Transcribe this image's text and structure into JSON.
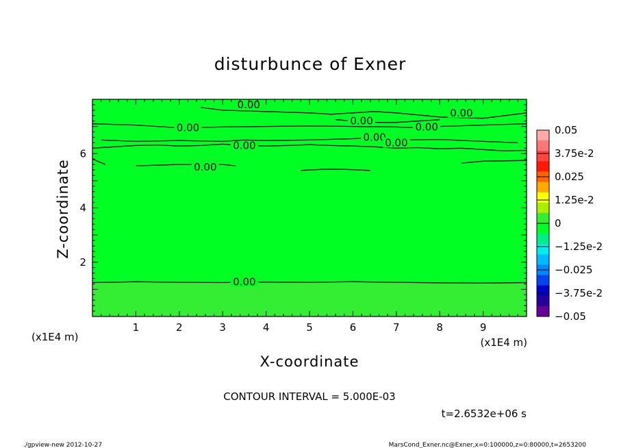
{
  "chart_data": {
    "type": "heatmap",
    "title": "disturbunce of Exner",
    "xlabel": "X-coordinate",
    "ylabel": "Z-coordinate",
    "x_unit": "(x1E4 m)",
    "y_unit": "(x1E4 m)",
    "xlim": [
      0,
      10
    ],
    "ylim": [
      0,
      8
    ],
    "x_ticks": [
      "1",
      "2",
      "3",
      "4",
      "5",
      "6",
      "7",
      "8",
      "9"
    ],
    "y_ticks": [
      "2",
      "4",
      "6"
    ],
    "field_colors": [
      {
        "z_from": 0,
        "z_to": 1.25,
        "color": "#33ee33"
      },
      {
        "z_from": 1.25,
        "z_to": 8,
        "color": "#00ff22"
      }
    ],
    "contour_label": "0.00",
    "contours": [
      {
        "x": [
          0,
          1,
          2,
          3,
          4,
          5,
          6,
          7,
          8,
          9,
          10
        ],
        "z": [
          1.25,
          1.28,
          1.26,
          1.25,
          1.27,
          1.26,
          1.28,
          1.26,
          1.24,
          1.23,
          1.25
        ],
        "labels": [
          {
            "x": 3.5,
            "z": 1.27
          }
        ]
      },
      {
        "x": [
          0,
          0.5,
          1,
          1.5,
          2,
          2.5,
          3,
          3.5,
          4,
          4.5,
          5,
          5.5,
          6,
          6.5,
          7,
          7.5,
          8,
          8.5,
          9,
          9.5,
          10
        ],
        "z": [
          6.2,
          6.25,
          6.3,
          6.32,
          6.28,
          6.3,
          6.35,
          6.3,
          6.28,
          6.3,
          6.33,
          6.3,
          6.28,
          6.25,
          6.2,
          6.22,
          6.18,
          6.2,
          6.15,
          6.1,
          6.12
        ],
        "labels": [
          {
            "x": 3.5,
            "z": 6.3
          }
        ]
      },
      {
        "x": [
          0.2,
          1,
          2,
          3,
          3.5,
          4,
          5,
          6,
          6.5,
          7,
          8,
          9,
          9.8
        ],
        "z": [
          6.5,
          6.45,
          6.48,
          6.45,
          6.5,
          6.48,
          6.5,
          6.55,
          6.6,
          6.5,
          6.52,
          6.45,
          6.4
        ],
        "labels": [
          {
            "x": 6.5,
            "z": 6.6
          },
          {
            "x": 7.0,
            "z": 6.4
          }
        ]
      },
      {
        "x": [
          0,
          1,
          1.5,
          2,
          3,
          4,
          5,
          6,
          7,
          7.5,
          8,
          9,
          10
        ],
        "z": [
          7.1,
          7.05,
          7.0,
          6.95,
          6.98,
          7.0,
          7.02,
          7.0,
          6.98,
          6.95,
          7.0,
          7.05,
          7.1
        ],
        "labels": [
          {
            "x": 2.2,
            "z": 6.95
          },
          {
            "x": 7.7,
            "z": 6.98
          }
        ]
      },
      {
        "x": [
          2.5,
          3,
          4,
          5,
          5.5,
          6,
          6.5,
          7,
          8,
          9,
          9.5,
          10
        ],
        "z": [
          7.7,
          7.6,
          7.55,
          7.5,
          7.45,
          7.5,
          7.55,
          7.5,
          7.35,
          7.3,
          7.4,
          7.5
        ],
        "labels": [
          {
            "x": 3.6,
            "z": 7.8
          },
          {
            "x": 8.5,
            "z": 7.5
          }
        ]
      },
      {
        "x": [
          5.6,
          6,
          6.5,
          7,
          7.5,
          8
        ],
        "z": [
          7.25,
          7.2,
          7.15,
          7.15,
          7.2,
          7.25
        ],
        "labels": [
          {
            "x": 6.2,
            "z": 7.2
          }
        ]
      },
      {
        "x": [
          1.0,
          2,
          3,
          3.3
        ],
        "z": [
          5.55,
          5.6,
          5.6,
          5.55
        ],
        "labels": [
          {
            "x": 2.6,
            "z": 5.5
          }
        ]
      },
      {
        "x": [
          4.8,
          5.3,
          5.8,
          6.4
        ],
        "z": [
          5.38,
          5.42,
          5.42,
          5.38
        ],
        "labels": []
      },
      {
        "x": [
          8.5,
          9,
          10
        ],
        "z": [
          5.65,
          5.72,
          5.75
        ],
        "labels": []
      },
      {
        "x": [
          0,
          0.3
        ],
        "z": [
          5.8,
          5.6
        ],
        "labels": []
      }
    ],
    "colorbar": {
      "labels": [
        "0.05",
        "3.75e-2",
        "0.025",
        "1.25e-2",
        "0",
        "−1.25e-2",
        "−0.025",
        "−3.75e-2",
        "−0.05"
      ],
      "colors_top_to_bottom": [
        "#ffaaaa",
        "#ff7777",
        "#ff4444",
        "#ff1a00",
        "#ff6600",
        "#ffaa00",
        "#ffff00",
        "#aaee00",
        "#33ee33",
        "#00ff22",
        "#00ee88",
        "#00eeee",
        "#00bbff",
        "#0088ff",
        "#0044ee",
        "#0000cc",
        "#220099",
        "#660099"
      ]
    }
  },
  "footer": {
    "contour_interval": "CONTOUR INTERVAL = 5.000E-03",
    "time": "t=2.6532e+06 s",
    "left_note": "./gpview-new  2012-10-27",
    "right_note": "MarsCond_Exner.nc@Exner,x=0:100000,z=0:80000,t=2653200"
  }
}
